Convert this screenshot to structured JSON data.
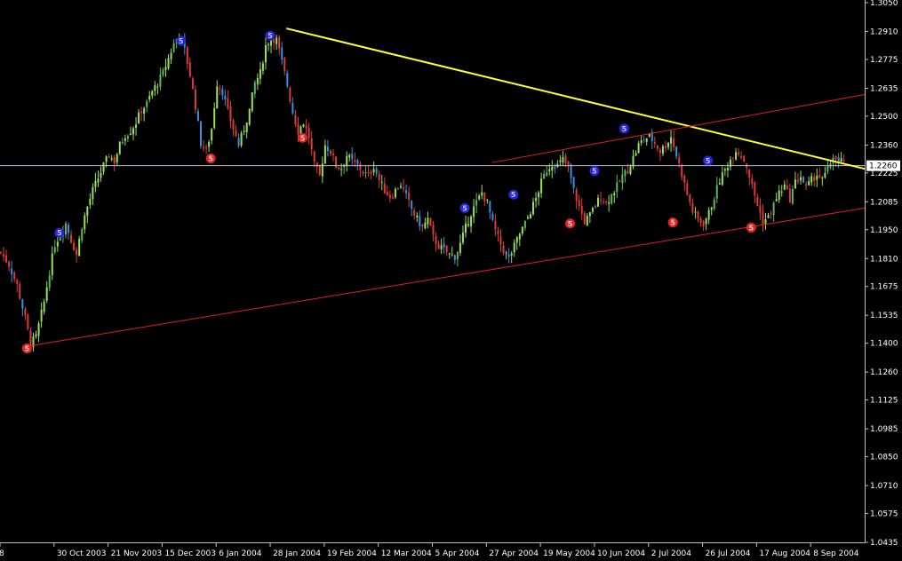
{
  "colors": {
    "background": "#000000",
    "axis": "#c0c0c0",
    "text": "#ffffff",
    "bull": "#9ae05a",
    "bull_alt": "#5cb85c",
    "bear": "#e03a3a",
    "bear_alt": "#3b8fe0",
    "trendline_yellow": "#ffff33",
    "channel_red": "#e01e1e",
    "current_line": "#b8c4d0",
    "marker_red": "#e52525",
    "marker_blue": "#2727e0"
  },
  "current_price_label": "1.2260",
  "chart_data": {
    "type": "candlestick",
    "title": "",
    "xlabel": "",
    "ylabel": "",
    "ylim": [
      1.0435,
      1.305
    ],
    "y_ticks": [
      "1.3050",
      "1.2910",
      "1.2775",
      "1.2635",
      "1.2500",
      "1.2360",
      "1.2225",
      "1.2085",
      "1.1950",
      "1.1810",
      "1.1675",
      "1.1535",
      "1.1400",
      "1.1260",
      "1.1125",
      "1.0985",
      "1.0850",
      "1.0710",
      "1.0575",
      "1.0435"
    ],
    "x_ticks": [
      "8",
      "30 Oct 2003",
      "21 Nov 2003",
      "15 Dec 2003",
      "6 Jan 2004",
      "28 Jan 2004",
      "19 Feb 2004",
      "12 Mar 2004",
      "5 Apr 2004",
      "27 Apr 2004",
      "19 May 2004",
      "10 Jun 2004",
      "2 Jul 2004",
      "26 Jul 2004",
      "17 Aug 2004",
      "8 Sep 2004"
    ],
    "x_index_range": [
      0,
      320
    ],
    "x_tick_index": [
      0,
      20,
      40,
      60,
      80,
      100,
      120,
      140,
      160,
      180,
      200,
      220,
      240,
      260,
      280,
      300
    ],
    "price_path": [
      [
        0,
        1.184
      ],
      [
        3,
        1.178
      ],
      [
        6,
        1.168
      ],
      [
        9,
        1.152
      ],
      [
        11,
        1.14
      ],
      [
        13,
        1.143
      ],
      [
        16,
        1.16
      ],
      [
        18,
        1.175
      ],
      [
        20,
        1.188
      ],
      [
        22,
        1.193
      ],
      [
        24,
        1.198
      ],
      [
        26,
        1.19
      ],
      [
        28,
        1.183
      ],
      [
        30,
        1.197
      ],
      [
        32,
        1.206
      ],
      [
        34,
        1.214
      ],
      [
        36,
        1.22
      ],
      [
        38,
        1.226
      ],
      [
        40,
        1.231
      ],
      [
        42,
        1.228
      ],
      [
        44,
        1.236
      ],
      [
        46,
        1.241
      ],
      [
        48,
        1.243
      ],
      [
        50,
        1.247
      ],
      [
        52,
        1.253
      ],
      [
        54,
        1.256
      ],
      [
        56,
        1.262
      ],
      [
        58,
        1.266
      ],
      [
        60,
        1.271
      ],
      [
        62,
        1.278
      ],
      [
        64,
        1.285
      ],
      [
        66,
        1.29
      ],
      [
        68,
        1.282
      ],
      [
        70,
        1.27
      ],
      [
        72,
        1.255
      ],
      [
        74,
        1.237
      ],
      [
        76,
        1.233
      ],
      [
        78,
        1.244
      ],
      [
        80,
        1.266
      ],
      [
        82,
        1.262
      ],
      [
        84,
        1.252
      ],
      [
        86,
        1.244
      ],
      [
        88,
        1.236
      ],
      [
        90,
        1.244
      ],
      [
        92,
        1.253
      ],
      [
        94,
        1.266
      ],
      [
        96,
        1.271
      ],
      [
        98,
        1.284
      ],
      [
        100,
        1.288
      ],
      [
        102,
        1.287
      ],
      [
        104,
        1.276
      ],
      [
        106,
        1.265
      ],
      [
        108,
        1.252
      ],
      [
        110,
        1.243
      ],
      [
        112,
        1.247
      ],
      [
        114,
        1.24
      ],
      [
        116,
        1.226
      ],
      [
        118,
        1.221
      ],
      [
        120,
        1.236
      ],
      [
        122,
        1.233
      ],
      [
        124,
        1.226
      ],
      [
        126,
        1.225
      ],
      [
        128,
        1.231
      ],
      [
        130,
        1.228
      ],
      [
        132,
        1.226
      ],
      [
        134,
        1.223
      ],
      [
        136,
        1.221
      ],
      [
        138,
        1.226
      ],
      [
        140,
        1.219
      ],
      [
        142,
        1.214
      ],
      [
        144,
        1.211
      ],
      [
        146,
        1.214
      ],
      [
        148,
        1.217
      ],
      [
        150,
        1.211
      ],
      [
        152,
        1.205
      ],
      [
        154,
        1.2
      ],
      [
        156,
        1.196
      ],
      [
        158,
        1.2
      ],
      [
        160,
        1.191
      ],
      [
        162,
        1.187
      ],
      [
        164,
        1.185
      ],
      [
        166,
        1.183
      ],
      [
        168,
        1.182
      ],
      [
        170,
        1.188
      ],
      [
        172,
        1.196
      ],
      [
        174,
        1.203
      ],
      [
        176,
        1.208
      ],
      [
        178,
        1.213
      ],
      [
        180,
        1.208
      ],
      [
        182,
        1.198
      ],
      [
        184,
        1.191
      ],
      [
        186,
        1.185
      ],
      [
        188,
        1.181
      ],
      [
        190,
        1.187
      ],
      [
        192,
        1.193
      ],
      [
        194,
        1.198
      ],
      [
        196,
        1.204
      ],
      [
        198,
        1.21
      ],
      [
        200,
        1.218
      ],
      [
        202,
        1.224
      ],
      [
        204,
        1.227
      ],
      [
        206,
        1.226
      ],
      [
        208,
        1.229
      ],
      [
        210,
        1.225
      ],
      [
        212,
        1.214
      ],
      [
        214,
        1.206
      ],
      [
        216,
        1.199
      ],
      [
        218,
        1.202
      ],
      [
        220,
        1.207
      ],
      [
        222,
        1.211
      ],
      [
        224,
        1.208
      ],
      [
        226,
        1.212
      ],
      [
        228,
        1.216
      ],
      [
        230,
        1.221
      ],
      [
        232,
        1.224
      ],
      [
        234,
        1.23
      ],
      [
        236,
        1.236
      ],
      [
        238,
        1.239
      ],
      [
        240,
        1.24
      ],
      [
        242,
        1.237
      ],
      [
        244,
        1.233
      ],
      [
        246,
        1.236
      ],
      [
        248,
        1.24
      ],
      [
        250,
        1.231
      ],
      [
        252,
        1.222
      ],
      [
        254,
        1.212
      ],
      [
        256,
        1.204
      ],
      [
        258,
        1.2
      ],
      [
        260,
        1.198
      ],
      [
        262,
        1.203
      ],
      [
        264,
        1.211
      ],
      [
        266,
        1.219
      ],
      [
        268,
        1.224
      ],
      [
        270,
        1.229
      ],
      [
        272,
        1.234
      ],
      [
        274,
        1.231
      ],
      [
        276,
        1.226
      ],
      [
        278,
        1.216
      ],
      [
        280,
        1.207
      ],
      [
        282,
        1.199
      ],
      [
        284,
        1.201
      ],
      [
        286,
        1.207
      ],
      [
        288,
        1.213
      ],
      [
        290,
        1.216
      ],
      [
        292,
        1.21
      ],
      [
        294,
        1.218
      ],
      [
        296,
        1.221
      ],
      [
        298,
        1.215
      ],
      [
        300,
        1.219
      ],
      [
        302,
        1.222
      ],
      [
        304,
        1.219
      ],
      [
        306,
        1.224
      ],
      [
        308,
        1.231
      ],
      [
        310,
        1.227
      ],
      [
        312,
        1.229
      ]
    ],
    "trendlines": [
      {
        "name": "resistance",
        "color": "yellow",
        "from": [
          106,
          1.2925
        ],
        "to": [
          320,
          1.2245
        ]
      },
      {
        "name": "channel-support",
        "color": "red",
        "from": [
          10,
          1.1385
        ],
        "to": [
          320,
          1.2055
        ]
      },
      {
        "name": "channel-top",
        "color": "red",
        "from": [
          182,
          1.2275
        ],
        "to": [
          320,
          1.2605
        ]
      }
    ],
    "current_price": 1.226,
    "markers": [
      {
        "i": 10,
        "price": 1.1375,
        "color": "red",
        "label": "5"
      },
      {
        "i": 22,
        "price": 1.1935,
        "color": "blue",
        "label": "5"
      },
      {
        "i": 67,
        "price": 1.2865,
        "color": "blue",
        "label": "5"
      },
      {
        "i": 78,
        "price": 1.2295,
        "color": "red",
        "label": "5"
      },
      {
        "i": 100,
        "price": 1.289,
        "color": "blue",
        "label": "5"
      },
      {
        "i": 112,
        "price": 1.2395,
        "color": "red",
        "label": "5"
      },
      {
        "i": 172,
        "price": 1.2055,
        "color": "blue",
        "label": "5"
      },
      {
        "i": 190,
        "price": 1.212,
        "color": "blue",
        "label": "5"
      },
      {
        "i": 211,
        "price": 1.198,
        "color": "red",
        "label": "5"
      },
      {
        "i": 220,
        "price": 1.2235,
        "color": "blue",
        "label": "5"
      },
      {
        "i": 231,
        "price": 1.244,
        "color": "blue",
        "label": "5"
      },
      {
        "i": 249,
        "price": 1.1985,
        "color": "red",
        "label": "5"
      },
      {
        "i": 262,
        "price": 1.2285,
        "color": "blue",
        "label": "5"
      },
      {
        "i": 278,
        "price": 1.196,
        "color": "red",
        "label": "5"
      }
    ],
    "legend": "none",
    "grid": false
  }
}
